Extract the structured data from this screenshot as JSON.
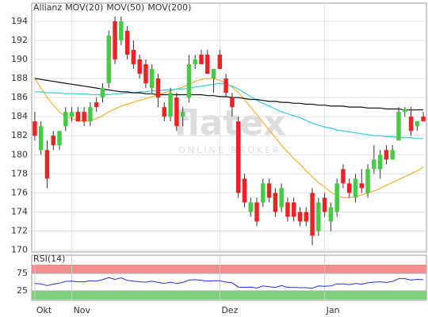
{
  "chart_data": {
    "type": "candlestick",
    "title": "Allianz",
    "title_color": "#999999",
    "watermark": "flatex",
    "watermark_sub": "ONLINE BROKER",
    "categories": [
      "Okt",
      null,
      null,
      null,
      null,
      null,
      "Nov",
      null,
      null,
      null,
      null,
      null,
      null,
      null,
      null,
      null,
      null,
      null,
      null,
      null,
      null,
      null,
      null,
      null,
      null,
      null,
      null,
      null,
      null,
      null,
      "Dez",
      null,
      null,
      null,
      null,
      null,
      null,
      null,
      null,
      null,
      null,
      null,
      null,
      null,
      null,
      null,
      null,
      "Jan",
      null,
      null,
      null,
      null,
      null,
      null,
      null,
      null,
      null,
      null,
      null,
      null,
      null,
      null,
      null,
      null
    ],
    "open": [
      183.5,
      180.5,
      180.5,
      182,
      181,
      183,
      184,
      184.5,
      184.5,
      183.5,
      185.5,
      186,
      187.5,
      194,
      192,
      193,
      191,
      190,
      189.5,
      187,
      188,
      185,
      184,
      186,
      184,
      186,
      189.5,
      190.5,
      190.5,
      188,
      190.5,
      188,
      186,
      183.5,
      177.5,
      174,
      175,
      175,
      177,
      176,
      174.5,
      175,
      175,
      174,
      174,
      176,
      172,
      175.5,
      173,
      174,
      178.5,
      177,
      175.5,
      177,
      176,
      178.5,
      178.5,
      180.5,
      179.5,
      181.5,
      184.5,
      184,
      183,
      184
    ],
    "high": [
      184.5,
      183.5,
      181.5,
      182.5,
      182.5,
      185,
      185,
      185,
      185,
      185.5,
      186,
      187.5,
      193,
      194.5,
      194.5,
      193.5,
      192,
      190.5,
      190,
      189.5,
      188.5,
      185.5,
      187,
      186.5,
      185,
      190.5,
      190.5,
      191,
      191,
      189,
      191,
      188.5,
      186.5,
      184,
      178,
      175.5,
      175.5,
      177.5,
      177.5,
      176.5,
      177,
      175.5,
      175.5,
      174.5,
      174.5,
      176.5,
      175.5,
      176,
      175,
      177.5,
      179,
      177.5,
      178,
      178.5,
      179,
      181,
      180.5,
      181,
      181,
      185,
      185,
      185,
      183.5,
      184.5
    ],
    "low": [
      181.5,
      180,
      176.5,
      180.5,
      180.5,
      182.5,
      183.5,
      183.5,
      183,
      183,
      184.5,
      185.5,
      187,
      189.5,
      191.5,
      190,
      189,
      188,
      187,
      186.5,
      185,
      183.5,
      183.5,
      182.5,
      183,
      185.5,
      189,
      189.5,
      188.5,
      186.5,
      189,
      186,
      184,
      175.5,
      174.5,
      173.5,
      172.5,
      174.5,
      175,
      173.5,
      174,
      173,
      173,
      172.5,
      172.5,
      170.5,
      171.5,
      173.5,
      172,
      173.5,
      176.5,
      175.5,
      175,
      176,
      175.5,
      178,
      177.5,
      179,
      179.5,
      181.5,
      184,
      182,
      182.5,
      183.5
    ],
    "close": [
      182,
      183,
      177.5,
      181,
      182.5,
      184.5,
      184.5,
      183.5,
      183.5,
      185,
      185,
      187,
      192.5,
      190,
      194,
      190.5,
      189.5,
      188.5,
      187.5,
      189,
      186,
      184,
      186.5,
      183,
      184.5,
      189.5,
      190,
      189.5,
      188.5,
      189,
      189,
      186.5,
      185,
      176,
      175,
      175,
      173,
      177,
      175.5,
      174,
      176.5,
      173.5,
      173.5,
      173,
      173,
      171.5,
      175,
      174,
      174.5,
      177,
      177,
      176,
      177.5,
      176.5,
      178.5,
      179.5,
      180,
      179.5,
      180.5,
      184.5,
      184.8,
      182.5,
      183.5,
      183.5
    ],
    "up_color": "#44cc44",
    "down_color": "#ee2222",
    "series": [
      {
        "name": "MOV(20)",
        "color": "#f0b030",
        "values": [
          188,
          187,
          186,
          185.2,
          184.5,
          184,
          183.8,
          183.6,
          183.5,
          183.6,
          183.8,
          184.1,
          184.5,
          184.8,
          185.1,
          185.3,
          185.5,
          185.7,
          185.9,
          186.1,
          186.3,
          186.5,
          186.7,
          186.9,
          187.1,
          187.4,
          187.7,
          187.9,
          188,
          188,
          187.8,
          187.5,
          187.1,
          186.5,
          185.8,
          185,
          184.2,
          183.4,
          182.6,
          181.8,
          181,
          180.3,
          179.6,
          179,
          178.3,
          177.7,
          177.1,
          176.6,
          176.1,
          175.7,
          175.5,
          175.5,
          175.6,
          175.8,
          176,
          176.2,
          176.5,
          176.8,
          177.1,
          177.4,
          177.7,
          178,
          178.3,
          178.7
        ]
      },
      {
        "name": "MOV(50)",
        "color": "#33ccdd",
        "values": [
          186.6,
          186.6,
          186.5,
          186.5,
          186.5,
          186.4,
          186.4,
          186.4,
          186.4,
          186.3,
          186.3,
          186.3,
          186.3,
          186.4,
          186.4,
          186.5,
          186.5,
          186.6,
          186.6,
          186.7,
          186.7,
          186.8,
          186.8,
          186.9,
          186.9,
          187,
          187.1,
          187.2,
          187.3,
          187.4,
          187.5,
          187.4,
          187.2,
          186.9,
          186.5,
          186.1,
          185.7,
          185.4,
          185.1,
          184.8,
          184.5,
          184.3,
          184.1,
          183.9,
          183.6,
          183.3,
          183.1,
          182.9,
          182.8,
          182.6,
          182.5,
          182.4,
          182.3,
          182.2,
          182.1,
          182,
          182,
          181.9,
          181.9,
          181.8,
          181.8,
          181.8,
          181.7,
          181.7
        ]
      },
      {
        "name": "MOV(200)",
        "color": "#111111",
        "values": [
          188,
          187.9,
          187.8,
          187.7,
          187.6,
          187.5,
          187.4,
          187.3,
          187.2,
          187.1,
          187,
          186.9,
          186.8,
          186.7,
          186.6,
          186.6,
          186.5,
          186.5,
          186.4,
          186.4,
          186.3,
          186.3,
          186.3,
          186.3,
          186.3,
          186.3,
          186.3,
          186.3,
          186.2,
          186.2,
          186.1,
          186.1,
          186,
          186,
          185.9,
          185.8,
          185.8,
          185.7,
          185.6,
          185.6,
          185.5,
          185.5,
          185.4,
          185.4,
          185.3,
          185.3,
          185.2,
          185.2,
          185.1,
          185.1,
          185.1,
          185,
          185,
          185,
          184.9,
          184.9,
          184.9,
          184.8,
          184.8,
          184.8,
          184.7,
          184.7,
          184.7,
          184.7
        ]
      }
    ],
    "ylim": [
      169.8,
      195.9
    ],
    "yticks": [
      170,
      172,
      174,
      176,
      178,
      180,
      182,
      184,
      186,
      188,
      190,
      192,
      194
    ],
    "grid": true,
    "rsi": {
      "name": "RSI(14)",
      "color": "#2233cc",
      "ylim": [
        0,
        100
      ],
      "yticks": [
        25,
        75
      ],
      "high_color": "#f58c8c",
      "low_color": "#7fd07f",
      "values": [
        46,
        45,
        40,
        44,
        47,
        52,
        53,
        51,
        51,
        54,
        53,
        57,
        63,
        58,
        62,
        55,
        53,
        51,
        50,
        53,
        49,
        46,
        50,
        46,
        49,
        56,
        57,
        55,
        53,
        54,
        54,
        50,
        48,
        36,
        35,
        36,
        33,
        39,
        37,
        35,
        40,
        35,
        35,
        34,
        34,
        32,
        39,
        38,
        39,
        45,
        45,
        43,
        46,
        44,
        48,
        50,
        51,
        49,
        52,
        60,
        60,
        56,
        58,
        57
      ]
    }
  }
}
